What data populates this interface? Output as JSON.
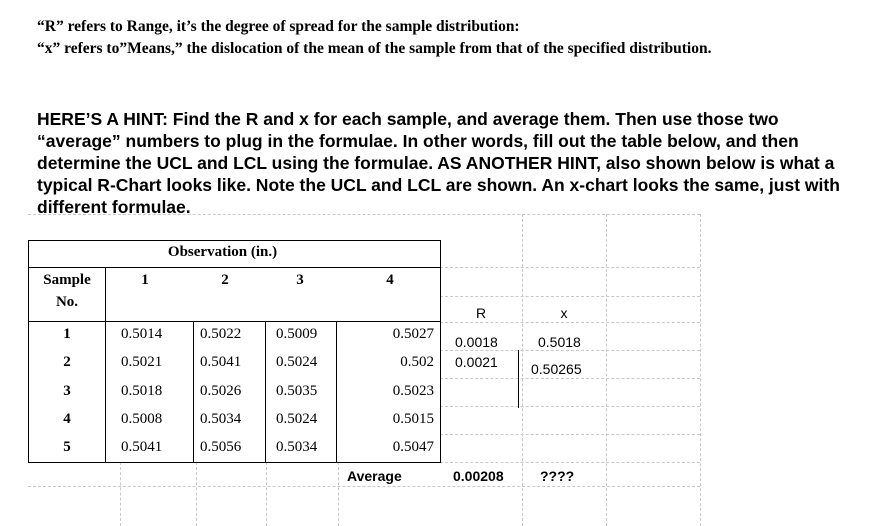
{
  "intro": {
    "line1": "“R” refers to Range, it’s the degree of spread for the sample distribution:",
    "line2": "“x” refers to”Means,” the dislocation of the mean of the sample from that of the specified distribution."
  },
  "hint": {
    "text": "HERE’S A HINT:  Find the R and x for each sample, and average them.  Then use those two “average” numbers  to plug in the formulae.  In other words, fill out the table below, and then determine the UCL and LCL using the formulae.  AS ANOTHER HINT, also shown below is what a typical R-Chart looks like.  Note the UCL and LCL are shown.   An x-chart looks the same, just with different formulae."
  },
  "table": {
    "group_header": "Observation (in.)",
    "sample_header_line1": "Sample",
    "sample_header_line2": "No.",
    "obs_headers": [
      "1",
      "2",
      "3",
      "4"
    ],
    "r_header": "R",
    "x_header": "x",
    "rows": [
      {
        "sample": "1",
        "o1": "0.5014",
        "o2": "0.5022",
        "o3": "0.5009",
        "o4": "0.5027",
        "r": "0.0018",
        "x": "0.5018"
      },
      {
        "sample": "2",
        "o1": "0.5021",
        "o2": "0.5041",
        "o3": "0.5024",
        "o4": "0.502",
        "r": "0.0021",
        "x": "0.50265"
      },
      {
        "sample": "3",
        "o1": "0.5018",
        "o2": "0.5026",
        "o3": "0.5035",
        "o4": "0.5023",
        "r": "",
        "x": ""
      },
      {
        "sample": "4",
        "o1": "0.5008",
        "o2": "0.5034",
        "o3": "0.5024",
        "o4": "0.5015",
        "r": "",
        "x": ""
      },
      {
        "sample": "5",
        "o1": "0.5041",
        "o2": "0.5056",
        "o3": "0.5034",
        "o4": "0.5047",
        "r": "",
        "x": ""
      }
    ],
    "average_label": "Average",
    "average_r": "0.00208",
    "average_x": "????"
  }
}
